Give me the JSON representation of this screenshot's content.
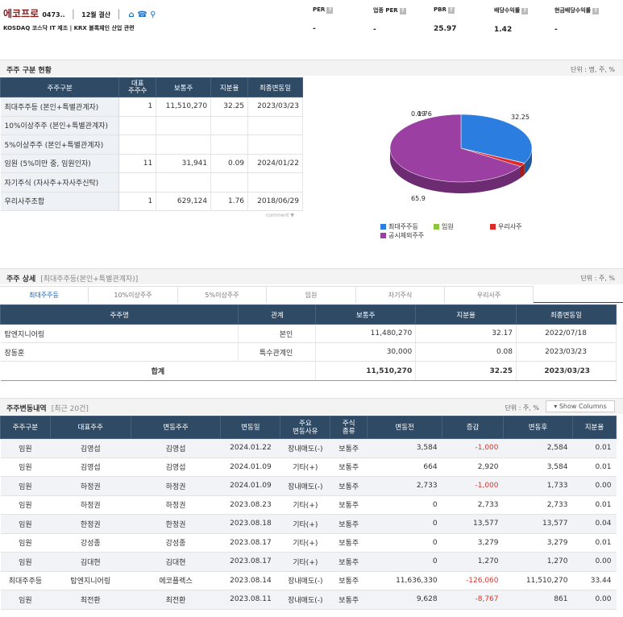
{
  "header": {
    "brand": "에코프로",
    "brand_meta": "0473..",
    "brand_sep1": "|",
    "brand_month": "12월 결산",
    "brand_sep2": "|",
    "icons": [
      "home-icon",
      "phone-icon",
      "map-pin-icon"
    ],
    "subline": "KOSDAQ 코스닥 IT 제조 | KRX 블록체인 산업 관련",
    "kpis": [
      {
        "label": "PER",
        "value": "-"
      },
      {
        "label": "업종 PER",
        "value": "-"
      },
      {
        "label": "PBR",
        "value": "25.97"
      },
      {
        "label": "배당수익률",
        "value": "1.42"
      },
      {
        "label": "현금배당수익률",
        "value": "-"
      }
    ]
  },
  "section1": {
    "title": "주주 구분 현황",
    "unit": "단위 : 명, 주, %",
    "columns": [
      "주주구분",
      "대표\n주주수",
      "보통주",
      "지분율",
      "최종변동일"
    ],
    "rows": [
      {
        "label": "최대주주등 (본인+특별관계자)",
        "count": "1",
        "shares": "11,510,270",
        "pct": "32.25",
        "date": "2023/03/23"
      },
      {
        "label": "10%이상주주 (본인+특별관계자)",
        "count": "",
        "shares": "",
        "pct": "",
        "date": ""
      },
      {
        "label": "5%이상주주 (본인+특별관계자)",
        "count": "",
        "shares": "",
        "pct": "",
        "date": ""
      },
      {
        "label": "임원 (5%미만 중, 임원인자)",
        "count": "11",
        "shares": "31,941",
        "pct": "0.09",
        "date": "2024/01/22"
      },
      {
        "label": "자기주식 (자사주+자사주신탁)",
        "count": "",
        "shares": "",
        "pct": "",
        "date": ""
      },
      {
        "label": "우리사주조합",
        "count": "1",
        "shares": "629,124",
        "pct": "1.76",
        "date": "2018/06/29"
      }
    ],
    "comment_label": "comment ▼"
  },
  "chart_data": {
    "type": "pie",
    "slices": [
      {
        "name": "최대주주등",
        "value": 32.25,
        "color": "#2b7de0"
      },
      {
        "name": "임원",
        "value": 0.09,
        "color": "#8cc63f"
      },
      {
        "name": "우리사주",
        "value": 1.76,
        "color": "#e02a2a"
      },
      {
        "name": "공시제외주주",
        "value": 65.9,
        "color": "#9b3fa3"
      }
    ],
    "data_labels": [
      "0.09",
      "1.76",
      "32.25",
      "65.9"
    ],
    "legend_position": "bottom"
  },
  "section2": {
    "title": "주주 상세",
    "subtitle": "[최대주주등(본인+특별관계자)]",
    "unit": "단위 : 주, %",
    "tabs": [
      "최대주주등",
      "10%이상주주",
      "5%이상주주",
      "임원",
      "자기주식",
      "우리사주"
    ],
    "columns": [
      "주주명",
      "관계",
      "보통주",
      "지분율",
      "최종변동일"
    ],
    "rows": [
      {
        "name": "탑엔지니어링",
        "rel": "본인",
        "shares": "11,480,270",
        "pct": "32.17",
        "date": "2022/07/18"
      },
      {
        "name": "장동훈",
        "rel": "특수관계인",
        "shares": "30,000",
        "pct": "0.08",
        "date": "2023/03/23"
      }
    ],
    "total": {
      "label": "합계",
      "shares": "11,510,270",
      "pct": "32.25",
      "date": "2023/03/23"
    }
  },
  "section3": {
    "title": "주주변동내역",
    "subtitle": "[최근 20건]",
    "unit": "단위 : 주, %",
    "show_columns": "Show Columns",
    "columns": [
      "주주구분",
      "대표주주",
      "변동주주",
      "변동일",
      "주요\n변동사유",
      "주식\n종류",
      "변동전",
      "증감",
      "변동후",
      "지분율"
    ],
    "rows": [
      {
        "type": "임원",
        "rep": "김영섭",
        "holder": "김영섭",
        "date": "2024.01.22",
        "reason": "장내매도(-)",
        "kind": "보통주",
        "before": "3,584",
        "change": "-1,000",
        "after": "2,584",
        "pct": "0.01"
      },
      {
        "type": "임원",
        "rep": "김영섭",
        "holder": "김영섭",
        "date": "2024.01.09",
        "reason": "기타(+)",
        "kind": "보통주",
        "before": "664",
        "change": "2,920",
        "after": "3,584",
        "pct": "0.01"
      },
      {
        "type": "임원",
        "rep": "하정권",
        "holder": "하정권",
        "date": "2024.01.09",
        "reason": "장내매도(-)",
        "kind": "보통주",
        "before": "2,733",
        "change": "-1,000",
        "after": "1,733",
        "pct": "0.00"
      },
      {
        "type": "임원",
        "rep": "하정권",
        "holder": "하정권",
        "date": "2023.08.23",
        "reason": "기타(+)",
        "kind": "보통주",
        "before": "0",
        "change": "2,733",
        "after": "2,733",
        "pct": "0.01"
      },
      {
        "type": "임원",
        "rep": "한정권",
        "holder": "한정권",
        "date": "2023.08.18",
        "reason": "기타(+)",
        "kind": "보통주",
        "before": "0",
        "change": "13,577",
        "after": "13,577",
        "pct": "0.04"
      },
      {
        "type": "임원",
        "rep": "강성종",
        "holder": "강성종",
        "date": "2023.08.17",
        "reason": "기타(+)",
        "kind": "보통주",
        "before": "0",
        "change": "3,279",
        "after": "3,279",
        "pct": "0.01"
      },
      {
        "type": "임원",
        "rep": "김대현",
        "holder": "김대현",
        "date": "2023.08.17",
        "reason": "기타(+)",
        "kind": "보통주",
        "before": "0",
        "change": "1,270",
        "after": "1,270",
        "pct": "0.00"
      },
      {
        "type": "최대주주등",
        "rep": "탑엔지니어링",
        "holder": "에코플렉스",
        "date": "2023.08.14",
        "reason": "장내매도(-)",
        "kind": "보통주",
        "before": "11,636,330",
        "change": "-126,060",
        "after": "11,510,270",
        "pct": "33.44"
      },
      {
        "type": "임원",
        "rep": "최전환",
        "holder": "최전환",
        "date": "2023.08.11",
        "reason": "장내매도(-)",
        "kind": "보통주",
        "before": "9,628",
        "change": "-8,767",
        "after": "861",
        "pct": "0.00"
      }
    ]
  }
}
